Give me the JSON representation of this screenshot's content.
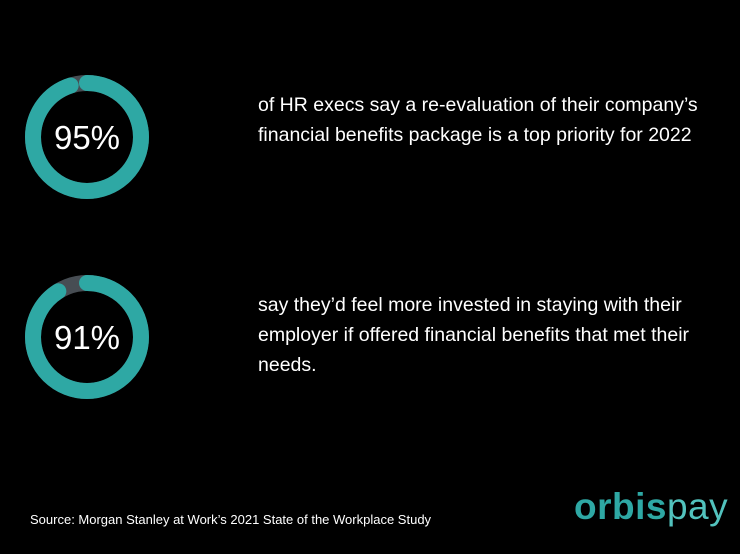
{
  "chart_data": [
    {
      "type": "donut",
      "values": [
        95
      ],
      "value_labels": [
        "95%"
      ],
      "color": "#2ea8a4",
      "track_color": "#474d53",
      "caption": "of HR execs say a re-evaluation of their company’s financial benefits package is a top priority for 2022"
    },
    {
      "type": "donut",
      "values": [
        91
      ],
      "value_labels": [
        "91%"
      ],
      "color": "#2ea8a4",
      "track_color": "#474d53",
      "caption": "say they’d feel more invested in staying with their employer if offered financial benefits that met their needs."
    }
  ],
  "source": "Source: Morgan Stanley at Work’s 2021 State of the Workplace Study",
  "logo": {
    "first": "orbis",
    "second": "pay"
  }
}
